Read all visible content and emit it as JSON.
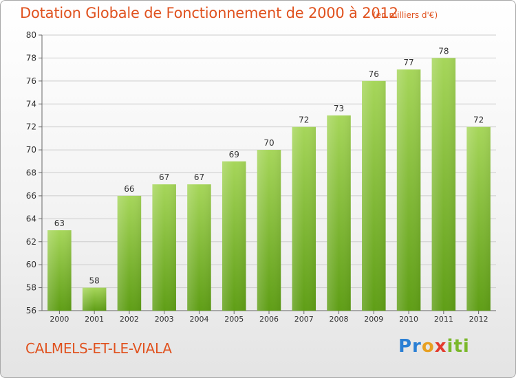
{
  "header": {
    "title": "Dotation Globale de Fonctionnement de 2000 à 2012",
    "unit": "(en milliers d'€)"
  },
  "footer": {
    "commune": "CALMELS-ET-LE-VIALA",
    "logo_text": "Proxiti",
    "logo_letters": [
      "Pr",
      "o",
      "x",
      "iti"
    ]
  },
  "colors": {
    "accent": "#e0521f",
    "bar_top": "#a6d65a",
    "bar_bottom": "#5f9e16",
    "grid": "#cccccc"
  },
  "chart_data": {
    "type": "bar",
    "title": "Dotation Globale de Fonctionnement de 2000 à 2012",
    "subtitle": "(en milliers d'€)",
    "xlabel": "",
    "ylabel": "",
    "categories": [
      "2000",
      "2001",
      "2002",
      "2003",
      "2004",
      "2005",
      "2006",
      "2007",
      "2008",
      "2009",
      "2010",
      "2011",
      "2012"
    ],
    "values": [
      63,
      58,
      66,
      67,
      67,
      69,
      70,
      72,
      73,
      76,
      77,
      78,
      72
    ],
    "ylim": [
      56,
      80
    ],
    "yticks": [
      56,
      58,
      60,
      62,
      64,
      66,
      68,
      70,
      72,
      74,
      76,
      78,
      80
    ],
    "grid": true,
    "legend": "none"
  }
}
